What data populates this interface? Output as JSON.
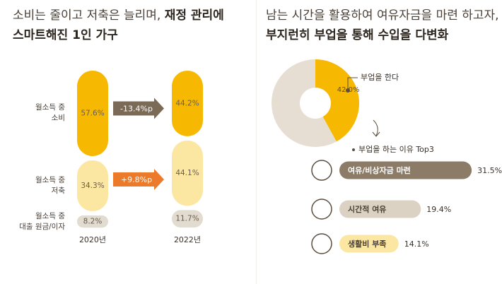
{
  "chart_data": [
    {
      "type": "stacked-pill",
      "title": [
        "소비는 줄이고 저축은 늘리며, ",
        "재정 관리에",
        "스마트해진 1인 가구"
      ],
      "categories": [
        "2020년",
        "2022년"
      ],
      "series": [
        {
          "name": "월소득 중\n소비",
          "color": "#f6b800",
          "values": [
            57.6,
            44.2
          ],
          "value_labels": [
            "57.6%",
            "44.2%"
          ]
        },
        {
          "name": "월소득 중\n저축",
          "color": "#fce7a2",
          "values": [
            34.3,
            44.1
          ],
          "value_labels": [
            "34.3%",
            "44.1%"
          ]
        },
        {
          "name": "월소득 중\n대출 원금/이자",
          "color": "#e2dbd0",
          "values": [
            8.2,
            11.7
          ],
          "value_labels": [
            "8.2%",
            "11.7%"
          ]
        }
      ],
      "annotations": [
        {
          "text": "-13.4%p",
          "color": "#7b6a55"
        },
        {
          "text": "+9.8%p",
          "color": "#ec7a2b"
        }
      ]
    },
    {
      "type": "donut",
      "title": [
        "남는 시간을 활용하여 여유자금을 마련 하고자,",
        "부지런히 부업을 통해 수입을 다변화"
      ],
      "categories": [
        "부업을 한다",
        null
      ],
      "values": [
        42.0,
        58.0
      ],
      "value_labels": [
        "42.0%",
        null
      ],
      "colors": [
        "#f6b800",
        "#e6ded2"
      ]
    },
    {
      "type": "hbar",
      "title": "부업을 하는 이유 Top3",
      "categories": [
        "여유/비상자금 마련",
        "시간적 여유",
        "생활비 부족"
      ],
      "values": [
        31.5,
        19.4,
        14.1
      ],
      "value_labels": [
        "31.5%",
        "19.4%",
        "14.1%"
      ],
      "colors": [
        "#8b7b67",
        "#dcd2c3",
        "#fce7a2"
      ],
      "text_colors": [
        "#ffffff",
        "#4a3f33",
        "#4a3f33"
      ]
    }
  ]
}
